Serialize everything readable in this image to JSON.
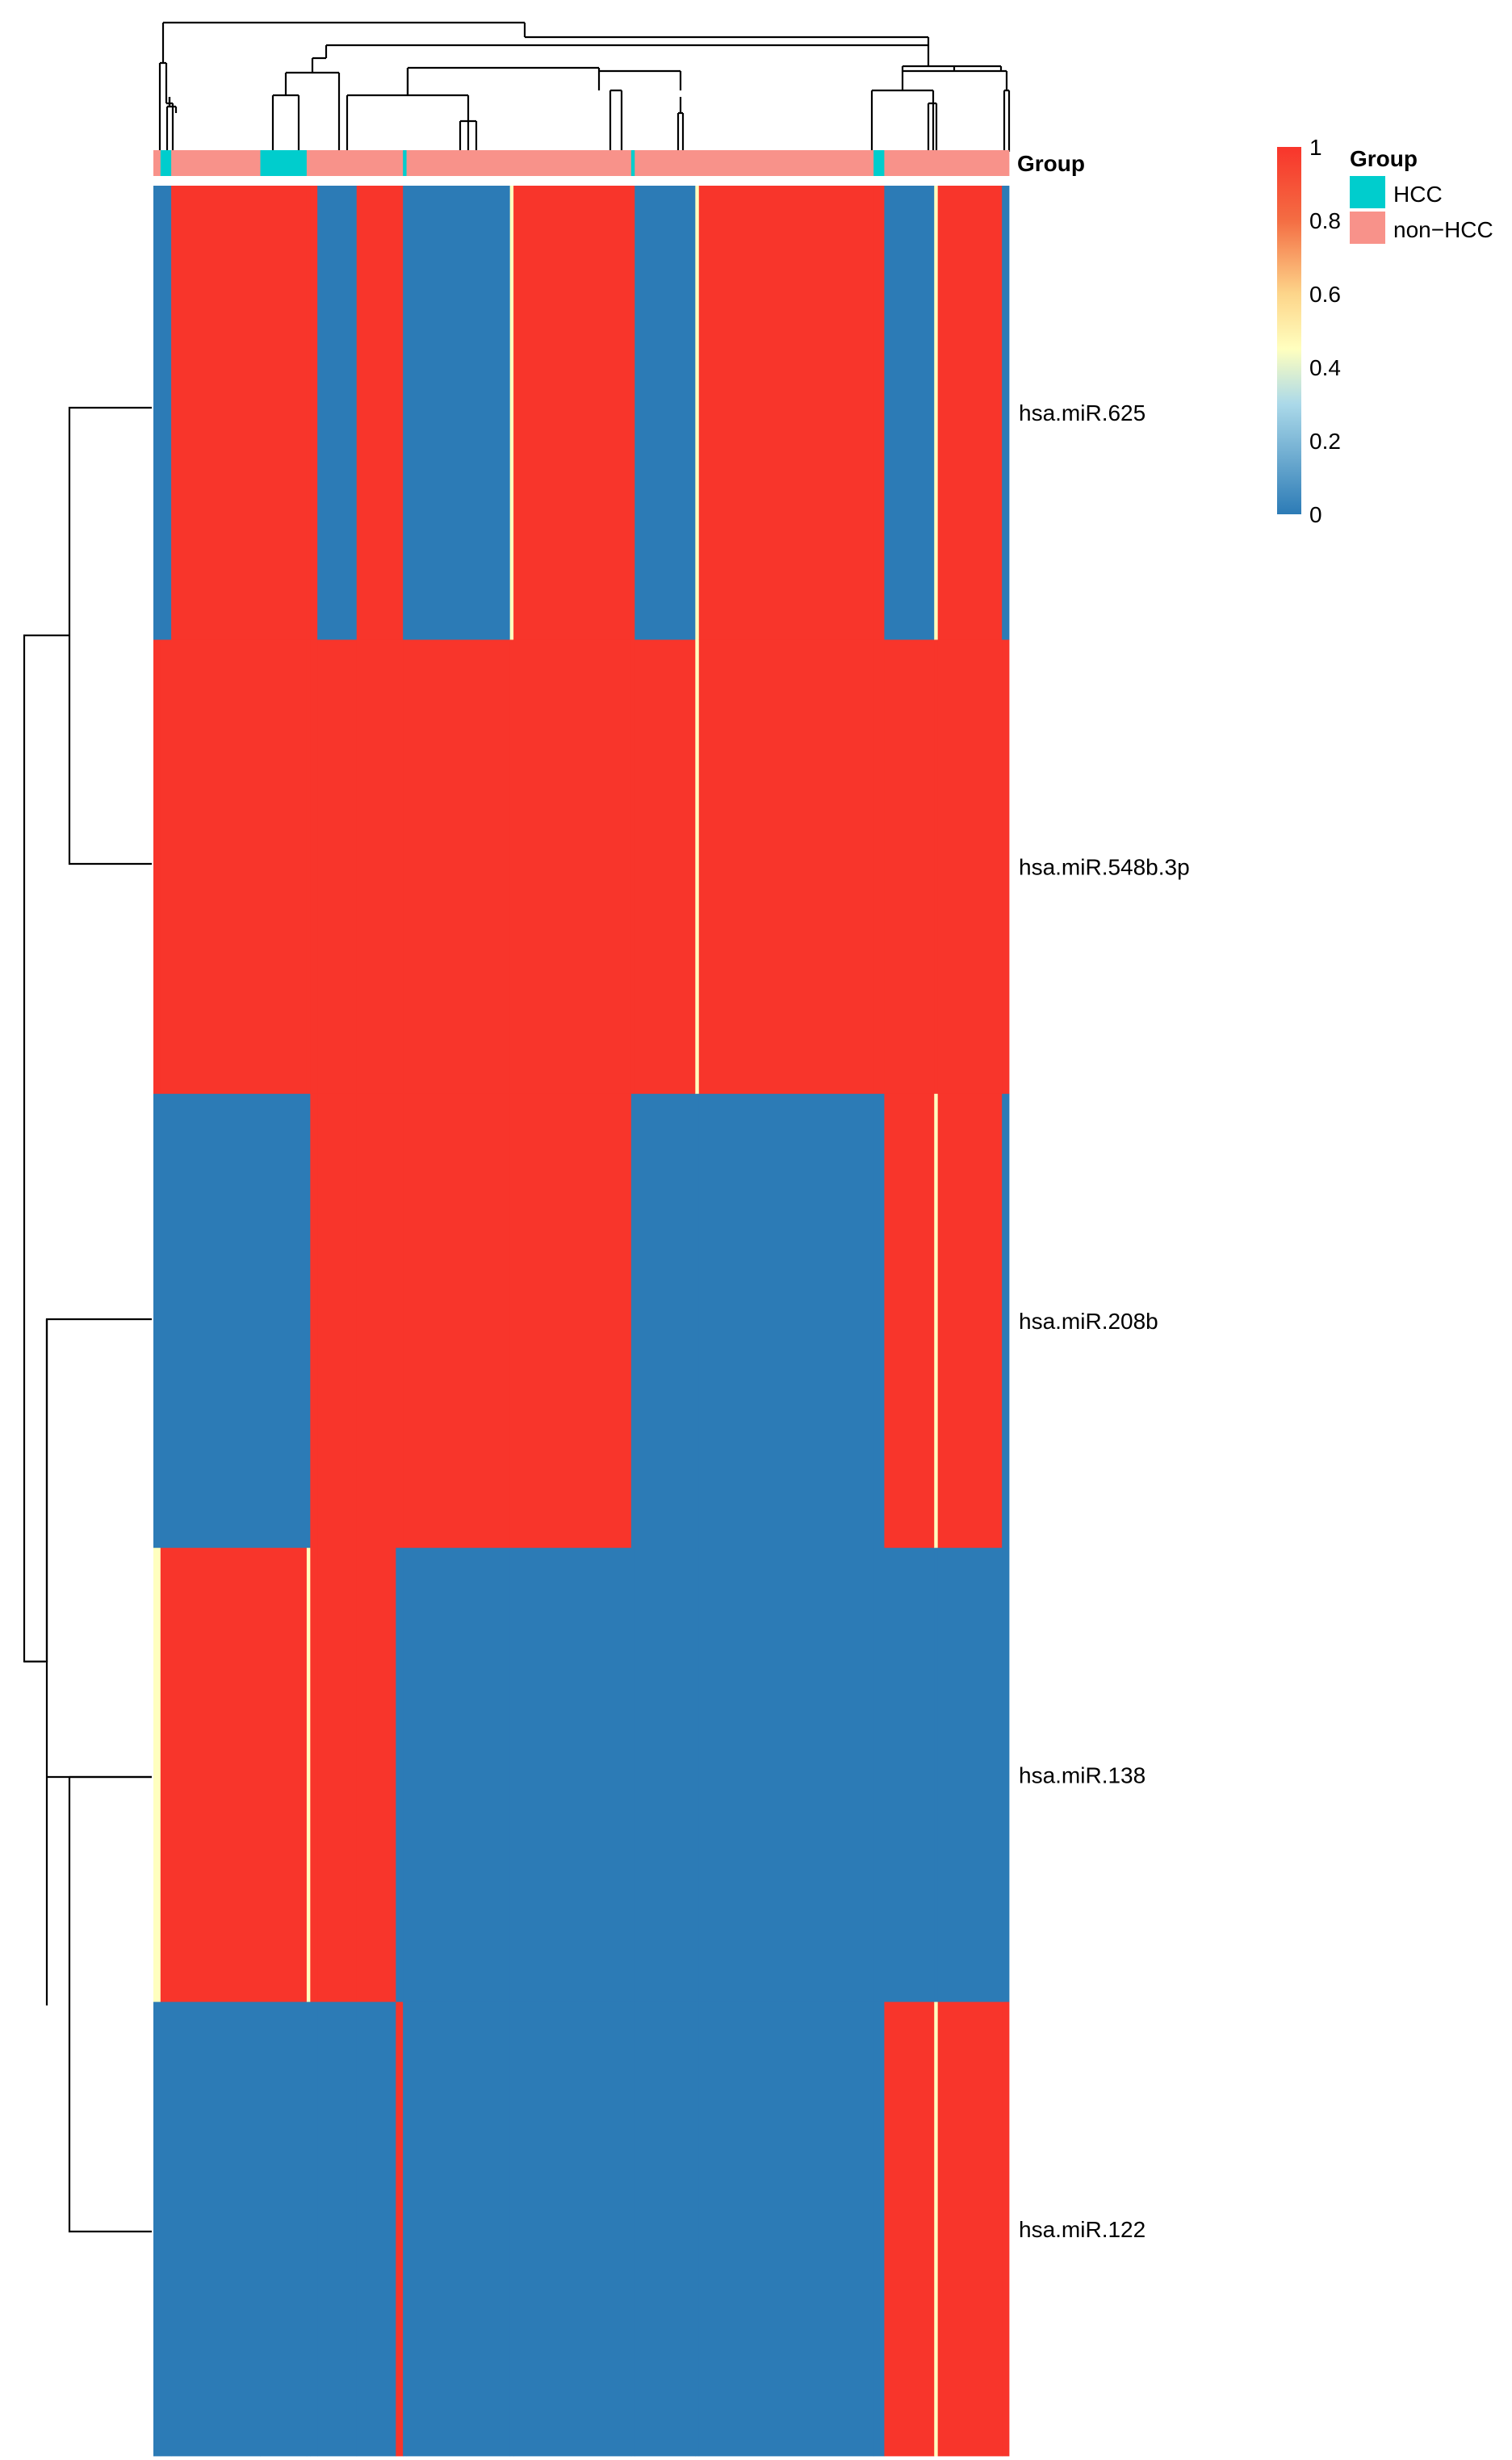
{
  "chart_data": {
    "type": "heatmap",
    "rows": [
      "hsa.miR.625",
      "hsa.miR.548b.3p",
      "hsa.miR.208b",
      "hsa.miR.138",
      "hsa.miR.122"
    ],
    "annotation": {
      "title": "Group",
      "categories": [
        "HCC",
        "non−HCC"
      ],
      "colors": {
        "HCC": "#00CDCD",
        "non−HCC": "#F8928A"
      }
    },
    "colorbar": {
      "ticks": [
        1,
        0.8,
        0.6,
        0.4,
        0.2,
        0
      ],
      "range": [
        0,
        1
      ],
      "low_color": "#2C7BB6",
      "mid_color": "#FFFFBF",
      "high_color": "#F8352B"
    },
    "column_blocks": [
      {
        "width": 2,
        "group": "non−HCC",
        "values": [
          0,
          1,
          0,
          0.5,
          0
        ]
      },
      {
        "width": 3,
        "group": "HCC",
        "values": [
          0,
          1,
          0,
          1,
          0
        ]
      },
      {
        "width": 25,
        "group": "non−HCC",
        "values": [
          1,
          1,
          0,
          1,
          0
        ]
      },
      {
        "width": 13,
        "group": "HCC",
        "values": [
          1,
          1,
          0,
          1,
          0
        ]
      },
      {
        "width": 1,
        "group": "non−HCC",
        "values": [
          1,
          1,
          0,
          0.5,
          0
        ]
      },
      {
        "width": 2,
        "group": "non−HCC",
        "values": [
          1,
          1,
          1,
          1,
          0
        ]
      },
      {
        "width": 11,
        "group": "non−HCC",
        "values": [
          0,
          1,
          1,
          1,
          0
        ]
      },
      {
        "width": 11,
        "group": "non−HCC",
        "values": [
          1,
          1,
          1,
          1,
          0
        ]
      },
      {
        "width": 2,
        "group": "non−HCC",
        "values": [
          1,
          1,
          1,
          0,
          1
        ]
      },
      {
        "width": 1,
        "group": "HCC",
        "values": [
          0,
          1,
          1,
          0,
          0
        ]
      },
      {
        "width": 29,
        "group": "non−HCC",
        "values": [
          0,
          1,
          1,
          0,
          0
        ]
      },
      {
        "width": 1,
        "group": "non−HCC",
        "values": [
          0.5,
          1,
          1,
          0,
          0
        ]
      },
      {
        "width": 33,
        "group": "non−HCC",
        "values": [
          1,
          1,
          1,
          0,
          0
        ]
      },
      {
        "width": 1,
        "group": "HCC",
        "values": [
          1,
          1,
          0,
          0,
          0
        ]
      },
      {
        "width": 17,
        "group": "non−HCC",
        "values": [
          0,
          1,
          0,
          0,
          0
        ]
      },
      {
        "width": 1,
        "group": "non−HCC",
        "values": [
          0.5,
          0.5,
          0,
          0,
          0
        ]
      },
      {
        "width": 49,
        "group": "non−HCC",
        "values": [
          1,
          1,
          0,
          0,
          0
        ]
      },
      {
        "width": 3,
        "group": "HCC",
        "values": [
          1,
          1,
          0,
          0,
          0
        ]
      },
      {
        "width": 14,
        "group": "non−HCC",
        "values": [
          0,
          1,
          1,
          0,
          1
        ]
      },
      {
        "width": 1,
        "group": "non−HCC",
        "values": [
          0.5,
          1,
          0.5,
          0,
          0.5
        ]
      },
      {
        "width": 18,
        "group": "non−HCC",
        "values": [
          1,
          1,
          1,
          0,
          1
        ]
      },
      {
        "width": 2,
        "group": "non−HCC",
        "values": [
          0,
          1,
          0,
          0,
          1
        ]
      }
    ]
  }
}
